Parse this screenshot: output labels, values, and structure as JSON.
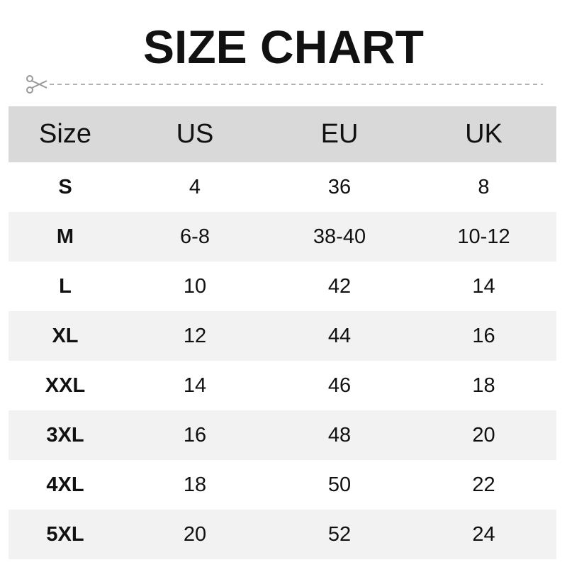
{
  "title": "SIZE CHART",
  "icons": {
    "cut": "scissors-icon"
  },
  "colors": {
    "header_bg": "#d9d9d9",
    "alt_row_bg": "#f2f2f2",
    "cutline": "#999999"
  },
  "table": {
    "headers": [
      "Size",
      "US",
      "EU",
      "UK"
    ],
    "rows": [
      [
        "S",
        "4",
        "36",
        "8"
      ],
      [
        "M",
        "6-8",
        "38-40",
        "10-12"
      ],
      [
        "L",
        "10",
        "42",
        "14"
      ],
      [
        "XL",
        "12",
        "44",
        "16"
      ],
      [
        "XXL",
        "14",
        "46",
        "18"
      ],
      [
        "3XL",
        "16",
        "48",
        "20"
      ],
      [
        "4XL",
        "18",
        "50",
        "22"
      ],
      [
        "5XL",
        "20",
        "52",
        "24"
      ]
    ]
  }
}
